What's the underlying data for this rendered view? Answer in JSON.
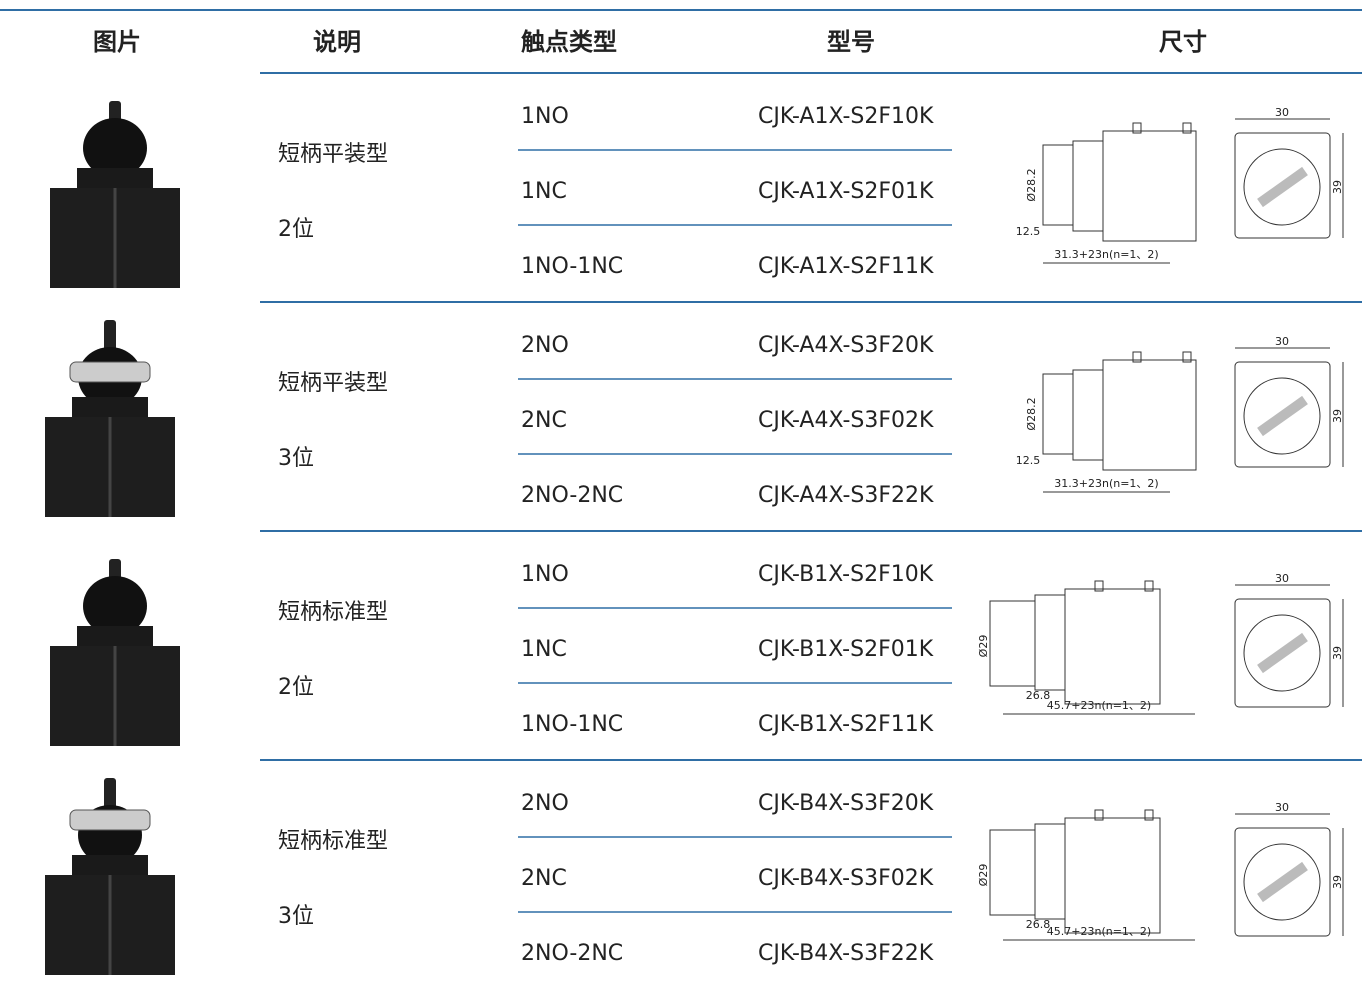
{
  "header": {
    "columns": [
      "图片",
      "说明",
      "触点类型",
      "型号",
      "尺寸"
    ]
  },
  "groups": [
    {
      "description": [
        "短柄平装型",
        "2位"
      ],
      "rows": [
        {
          "contact": "1NO",
          "model": "CJK-A1X-S2F10K"
        },
        {
          "contact": "1NC",
          "model": "CJK-A1X-S2F01K"
        },
        {
          "contact": "1NO-1NC",
          "model": "CJK-A1X-S2F11K"
        }
      ],
      "dimensions": {
        "diameter": "Ø28.2",
        "offset": "12.5",
        "length": "31.3+23n(n=1、2)",
        "width": "30",
        "height": "39"
      }
    },
    {
      "description": [
        "短柄平装型",
        "3位"
      ],
      "rows": [
        {
          "contact": "2NO",
          "model": "CJK-A4X-S3F20K"
        },
        {
          "contact": "2NC",
          "model": "CJK-A4X-S3F02K"
        },
        {
          "contact": "2NO-2NC",
          "model": "CJK-A4X-S3F22K"
        }
      ],
      "dimensions": {
        "diameter": "Ø28.2",
        "offset": "12.5",
        "length": "31.3+23n(n=1、2)",
        "width": "30",
        "height": "39"
      }
    },
    {
      "description": [
        "短柄标准型",
        "2位"
      ],
      "rows": [
        {
          "contact": "1NO",
          "model": "CJK-B1X-S2F10K"
        },
        {
          "contact": "1NC",
          "model": "CJK-B1X-S2F01K"
        },
        {
          "contact": "1NO-1NC",
          "model": "CJK-B1X-S2F11K"
        }
      ],
      "dimensions": {
        "diameter": "Ø29",
        "offset": "26.8",
        "length": "45.7+23n(n=1、2)",
        "width": "30",
        "height": "39"
      }
    },
    {
      "description": [
        "短柄标准型",
        "3位"
      ],
      "rows": [
        {
          "contact": "2NO",
          "model": "CJK-B4X-S3F20K"
        },
        {
          "contact": "2NC",
          "model": "CJK-B4X-S3F02K"
        },
        {
          "contact": "2NO-2NC",
          "model": "CJK-B4X-S3F22K"
        }
      ],
      "dimensions": {
        "diameter": "Ø29",
        "offset": "26.8",
        "length": "45.7+23n(n=1、2)",
        "width": "30",
        "height": "39"
      }
    }
  ]
}
